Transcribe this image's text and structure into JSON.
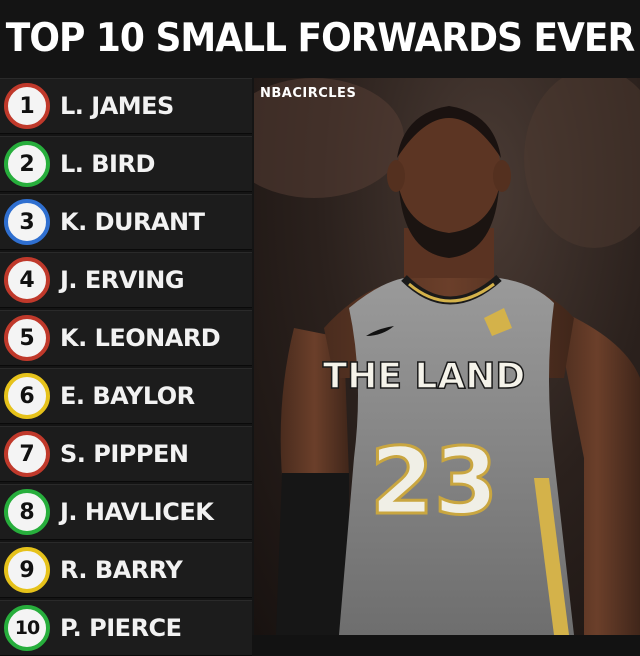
{
  "title": "TOP 10 SMALL FORWARDS EVER",
  "watermark": "NBACIRCLES",
  "jersey": {
    "chest_text": "THE LAND",
    "number": "23"
  },
  "players": [
    {
      "rank": "1",
      "name": "L. JAMES",
      "ring_color": "#c0392b"
    },
    {
      "rank": "2",
      "name": "L. BIRD",
      "ring_color": "#27ae3c"
    },
    {
      "rank": "3",
      "name": "K. DURANT",
      "ring_color": "#2f6fd0"
    },
    {
      "rank": "4",
      "name": "J. ERVING",
      "ring_color": "#c0392b"
    },
    {
      "rank": "5",
      "name": "K. LEONARD",
      "ring_color": "#c0392b"
    },
    {
      "rank": "6",
      "name": "E. BAYLOR",
      "ring_color": "#e6c21a"
    },
    {
      "rank": "7",
      "name": "S. PIPPEN",
      "ring_color": "#c0392b"
    },
    {
      "rank": "8",
      "name": "J. HAVLICEK",
      "ring_color": "#27ae3c"
    },
    {
      "rank": "9",
      "name": "R. BARRY",
      "ring_color": "#e6c21a"
    },
    {
      "rank": "10",
      "name": "P. PIERCE",
      "ring_color": "#27ae3c"
    }
  ]
}
